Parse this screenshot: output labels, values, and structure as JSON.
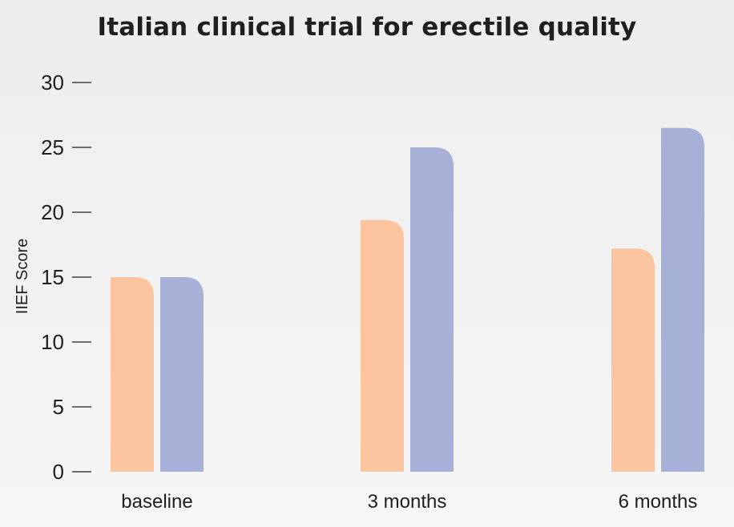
{
  "chart_data": {
    "type": "bar",
    "title": "Italian clinical trial for erectile quality",
    "ylabel": "IIEF Score",
    "xlabel": "",
    "categories": [
      "baseline",
      "3 months",
      "6 months"
    ],
    "series": [
      {
        "color": "#fdc4a0",
        "values": [
          15,
          19.4,
          17.2
        ]
      },
      {
        "color": "#a7b0d6",
        "values": [
          15,
          25,
          26.5
        ]
      }
    ],
    "ylim": [
      0,
      30
    ],
    "yticks": [
      0,
      5,
      10,
      15,
      20,
      25,
      30
    ],
    "grid": false,
    "legend": "none"
  }
}
